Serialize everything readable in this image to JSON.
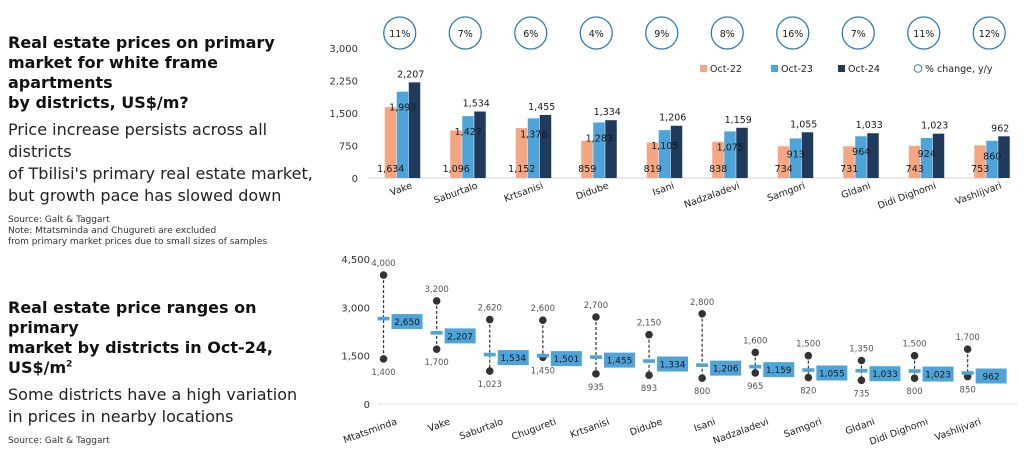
{
  "text_top": {
    "title_lines": [
      "Real estate prices on primary",
      "market for white frame apartments",
      "by districts, US$/m?"
    ],
    "subtitle_lines": [
      "Price increase persists across all districts",
      "of Tbilisi's primary real estate market,",
      "but growth pace has slowed down"
    ],
    "note_lines": [
      "Source: Galt & Taggart",
      "Note: Mtatsminda and Chugureti are excluded",
      "from primary market prices due to small sizes of samples"
    ]
  },
  "text_bottom": {
    "title_line1": "Real estate price ranges on primary",
    "title_line2": "market by districts in Oct-24, US$/m",
    "title_sup": "2",
    "subtitle_lines": [
      "Some districts have a high variation",
      "in prices in nearby locations"
    ],
    "note": "Source: Galt & Taggart"
  },
  "colors": {
    "oct22": "#f4a582",
    "oct23": "#4ea3d8",
    "oct24": "#1f3a5a",
    "pct_ring": "#2b7bb9",
    "range_line": "#333333",
    "range_dot": "#333333",
    "avg_box": "#4ea3d8"
  },
  "chart_data": [
    {
      "type": "bar",
      "title": "Real estate prices on primary market for white frame apartments by districts, US$/m?",
      "categories": [
        "Vake",
        "Saburtalo",
        "Krtsanisi",
        "Didube",
        "Isani",
        "Nadzaladevi",
        "Samgori",
        "Gldani",
        "Didi Dighomi",
        "Vashlijvari"
      ],
      "series": [
        {
          "name": "Oct-22",
          "values": [
            1634,
            1096,
            1152,
            859,
            819,
            838,
            734,
            731,
            743,
            753
          ]
        },
        {
          "name": "Oct-23",
          "values": [
            1993,
            1427,
            1376,
            1283,
            1105,
            1075,
            913,
            964,
            924,
            860
          ]
        },
        {
          "name": "Oct-24",
          "values": [
            2207,
            1534,
            1455,
            1334,
            1206,
            1159,
            1055,
            1033,
            1023,
            962
          ]
        }
      ],
      "pct_change": [
        "11%",
        "7%",
        "6%",
        "4%",
        "9%",
        "8%",
        "16%",
        "7%",
        "11%",
        "12%"
      ],
      "pct_legend": "% change, y/y",
      "yticks": [
        "0",
        "750",
        "1,500",
        "2,250",
        "3,000"
      ],
      "ylim": [
        0,
        3000
      ]
    },
    {
      "type": "range",
      "title": "Real estate price ranges on primary market by districts in Oct-24, US$/m2",
      "categories": [
        "Mtatsminda",
        "Vake",
        "Saburtalo",
        "Chugureti",
        "Krtsanisi",
        "Didube",
        "Isani",
        "Nadzaladevi",
        "Samgori",
        "Gldani",
        "Didi Dighomi",
        "Vashlijvari"
      ],
      "max": [
        4000,
        3200,
        2620,
        2600,
        2700,
        2150,
        2800,
        1600,
        1500,
        1350,
        1500,
        1700
      ],
      "min": [
        1400,
        1700,
        1023,
        1450,
        935,
        893,
        800,
        965,
        820,
        735,
        800,
        850
      ],
      "avg": [
        2650,
        2207,
        1534,
        1501,
        1455,
        1334,
        1206,
        1159,
        1055,
        1033,
        1023,
        962
      ],
      "max_labels": [
        "4,000",
        "3,200",
        "2,620",
        "2,600",
        "2,700",
        "2,150",
        "2,800",
        "1,600",
        "1,500",
        "1,350",
        "1,500",
        "1,700"
      ],
      "min_labels": [
        "1,400",
        "1,700",
        "1,023",
        "1,450",
        "935",
        "893",
        "800",
        "965",
        "820",
        "735",
        "800",
        "850"
      ],
      "avg_labels": [
        "2,650",
        "2,207",
        "1,534",
        "1,501",
        "1,455",
        "1,334",
        "1,206",
        "1,159",
        "1,055",
        "1,033",
        "1,023",
        "962"
      ],
      "yticks": [
        "0",
        "1,500",
        "3,000",
        "4,500"
      ],
      "ylim": [
        0,
        4500
      ]
    }
  ]
}
